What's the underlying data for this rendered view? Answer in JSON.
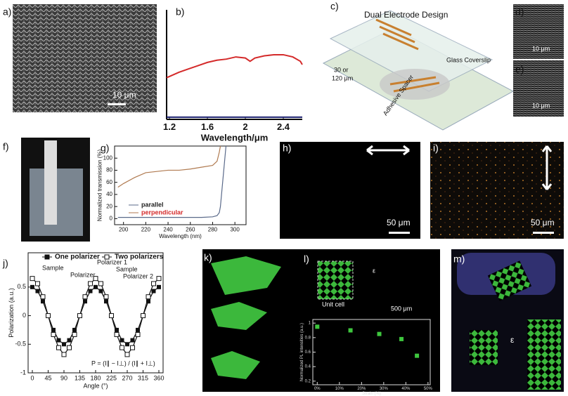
{
  "panel_labels": [
    "a)",
    "b)",
    "c)",
    "d)",
    "e)",
    "f)",
    "g)",
    "h)",
    "i)",
    "j)",
    "k)",
    "l)",
    "m)"
  ],
  "annotations": {
    "a_scale": "10 μm",
    "c_title": "Dual Electrode Design",
    "c_gap1": "30 or",
    "c_gap2": "120 μm",
    "c_glass": "Glass Coverslip",
    "c_spacer": "Adhesive Spacer",
    "d_scale": "10 μm",
    "e_scale": "10 μm",
    "h_scale": "50 μm",
    "i_scale": "50 μm",
    "j_sample1": "Sample",
    "j_polarizer": "Polarizer",
    "j_polarizer1": "Polarizer 1",
    "j_sample2": "Sample",
    "j_polarizer2": "Polarizer 2",
    "j_formula": "P = (I∥ − I⊥) / (I∥ + I⊥)",
    "l_unit": "Unit cell",
    "l_eps": "ε",
    "l_scale": "500 μm",
    "m_eps": "ε"
  },
  "chart_data": [
    {
      "type": "line",
      "xlabel": "Wavelength/μm",
      "xlim": [
        1.17,
        2.6
      ],
      "xticks": [
        1.2,
        1.6,
        2.0,
        2.4
      ],
      "ylim": [
        0,
        1
      ],
      "x": [
        1.17,
        1.3,
        1.4,
        1.5,
        1.6,
        1.7,
        1.8,
        1.9,
        2.0,
        2.05,
        2.1,
        2.2,
        2.3,
        2.4,
        2.5,
        2.58,
        2.6
      ],
      "series": [
        {
          "color": "#d42a2a",
          "values": [
            0.38,
            0.43,
            0.46,
            0.49,
            0.52,
            0.54,
            0.55,
            0.57,
            0.56,
            0.53,
            0.56,
            0.58,
            0.59,
            0.59,
            0.57,
            0.53,
            0.5
          ]
        },
        {
          "color": "#1a1f6e",
          "values": [
            0.02,
            0.02,
            0.02,
            0.02,
            0.02,
            0.02,
            0.02,
            0.02,
            0.02,
            0.02,
            0.02,
            0.02,
            0.02,
            0.02,
            0.02,
            0.02,
            0.02
          ]
        }
      ]
    },
    {
      "type": "line",
      "xlabel": "Wavelength (nm)",
      "ylabel": "Normalized transmission (%)",
      "xlim": [
        192,
        310
      ],
      "xticks": [
        200,
        220,
        240,
        260,
        280,
        300
      ],
      "ylim": [
        -10,
        120
      ],
      "yticks": [
        0,
        20,
        40,
        60,
        80,
        100
      ],
      "legend": "bottom-left",
      "x": [
        195,
        200,
        210,
        220,
        230,
        240,
        250,
        260,
        270,
        280,
        284,
        286,
        287,
        288,
        290,
        292
      ],
      "series": [
        {
          "name": "parallel",
          "color": "#5a6a8a",
          "label_color": "#222",
          "values": [
            2,
            2,
            2,
            2,
            2,
            2,
            2,
            2,
            2,
            3,
            5,
            10,
            20,
            40,
            80,
            120
          ]
        },
        {
          "name": "perpendicular",
          "color": "#b07a50",
          "label_color": "#d42a2a",
          "values": [
            52,
            58,
            68,
            76,
            78,
            80,
            80,
            82,
            85,
            88,
            95,
            110,
            120,
            null,
            null,
            null
          ]
        }
      ]
    },
    {
      "type": "line",
      "xlabel": "Angle (°)",
      "ylabel": "Polarization (a.u.)",
      "xlim": [
        -12,
        372
      ],
      "xticks": [
        0,
        45,
        90,
        135,
        180,
        225,
        270,
        315,
        360
      ],
      "ylim": [
        -1,
        1.1
      ],
      "yticks": [
        0.5,
        0.0,
        -0.5,
        -1.0
      ],
      "legend": "top",
      "x": [
        0,
        15,
        30,
        45,
        60,
        75,
        90,
        105,
        120,
        135,
        150,
        165,
        180,
        195,
        210,
        225,
        240,
        255,
        270,
        285,
        300,
        315,
        330,
        345,
        360
      ],
      "series": [
        {
          "name": "One polarizer",
          "color": "#111",
          "marker": "square",
          "filled": true,
          "values": [
            0.5,
            0.43,
            0.25,
            0,
            -0.25,
            -0.43,
            -0.5,
            -0.43,
            -0.25,
            0,
            0.25,
            0.43,
            0.5,
            0.43,
            0.25,
            0,
            -0.25,
            -0.43,
            -0.5,
            -0.43,
            -0.25,
            0,
            0.25,
            0.43,
            0.5
          ]
        },
        {
          "name": "Two polarizers",
          "color": "#111",
          "marker": "square",
          "filled": false,
          "values": [
            0.65,
            0.56,
            0.33,
            0,
            -0.33,
            -0.56,
            -0.68,
            -0.56,
            -0.33,
            0,
            0.33,
            0.56,
            0.65,
            0.56,
            0.33,
            0,
            -0.33,
            -0.56,
            -0.68,
            -0.56,
            -0.33,
            0,
            0.33,
            0.56,
            0.65
          ]
        }
      ]
    },
    {
      "type": "scatter",
      "xlabel": "Strain (%)",
      "ylabel": "Normalized PL intensities (a.u.)",
      "xlim": [
        -2,
        51
      ],
      "xticks": [
        {
          "value": 0,
          "label": "0%"
        },
        {
          "value": 10,
          "label": "10%"
        },
        {
          "value": 20,
          "label": "20%"
        },
        {
          "value": 30,
          "label": "30%"
        },
        {
          "value": 40,
          "label": "40%"
        },
        {
          "value": 50,
          "label": "50%"
        }
      ],
      "ylim": [
        0.15,
        1.05
      ],
      "yticks": [
        0.2,
        0.4,
        0.6,
        0.8,
        1.0
      ],
      "x": [
        0,
        15,
        28,
        38,
        45
      ],
      "series": [
        {
          "color": "#3ec63e",
          "values": [
            0.95,
            0.9,
            0.85,
            0.78,
            0.55
          ]
        }
      ]
    }
  ]
}
